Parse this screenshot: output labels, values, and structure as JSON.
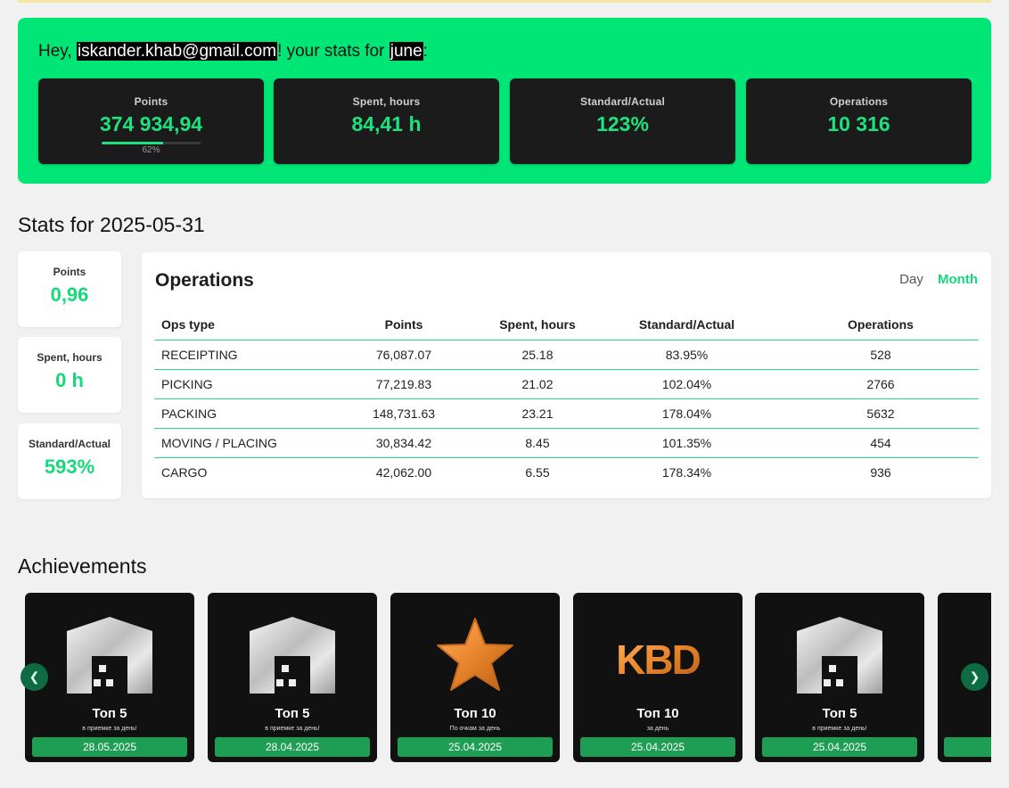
{
  "header": {
    "greeting_prefix": "Hey, ",
    "email": "iskander.khab@gmail.com",
    "greeting_middle": "! your stats for ",
    "month": "june",
    "greeting_suffix": ":"
  },
  "summary": {
    "points": {
      "label": "Points",
      "value": "374 934,94",
      "progress_percent": 62,
      "progress_label": "62%"
    },
    "spent_hours": {
      "label": "Spent, hours",
      "value": "84,41 h"
    },
    "standard_actual": {
      "label": "Standard/Actual",
      "value": "123%"
    },
    "operations": {
      "label": "Operations",
      "value": "10 316"
    }
  },
  "daily": {
    "title": "Stats for 2025-05-31",
    "points": {
      "label": "Points",
      "value": "0,96"
    },
    "spent_hours": {
      "label": "Spent, hours",
      "value": "0 h"
    },
    "standard_actual": {
      "label": "Standard/Actual",
      "value": "593%"
    }
  },
  "operations": {
    "title": "Operations",
    "toggle": {
      "day": "Day",
      "month": "Month",
      "active": "Month"
    },
    "columns": [
      "Ops type",
      "Points",
      "Spent, hours",
      "Standard/Actual",
      "Operations"
    ],
    "rows": [
      [
        "RECEIPTING",
        "76,087.07",
        "25.18",
        "83.95%",
        "528"
      ],
      [
        "PICKING",
        "77,219.83",
        "21.02",
        "102.04%",
        "2766"
      ],
      [
        "PACKING",
        "148,731.63",
        "23.21",
        "178.04%",
        "5632"
      ],
      [
        "MOVING / PLACING",
        "30,834.42",
        "8.45",
        "101.35%",
        "454"
      ],
      [
        "CARGO",
        "42,062.00",
        "6.55",
        "178.34%",
        "936"
      ]
    ]
  },
  "achievements": {
    "title": "Achievements",
    "items": [
      {
        "icon": "warehouse-icon",
        "name": "Топ 5",
        "subtitle": "в приемке за день!",
        "date": "28.05.2025"
      },
      {
        "icon": "warehouse-icon",
        "name": "Топ 5",
        "subtitle": "в приемке за день!",
        "date": "28.04.2025"
      },
      {
        "icon": "star-icon",
        "name": "Топ 10",
        "subtitle": "По очкам за день",
        "date": "25.04.2025"
      },
      {
        "icon": "kbd-logo-icon",
        "logo_text": "KBD",
        "name": "Топ 10",
        "subtitle": "за день",
        "date": "25.04.2025"
      },
      {
        "icon": "warehouse-icon",
        "name": "Топ 5",
        "subtitle": "в приемке за день!",
        "date": "25.04.2025"
      }
    ]
  },
  "colors": {
    "accent": "#00e676",
    "card_dark": "#1b1b1b",
    "value_green": "#1de27e",
    "date_badge": "#1e9e55"
  }
}
